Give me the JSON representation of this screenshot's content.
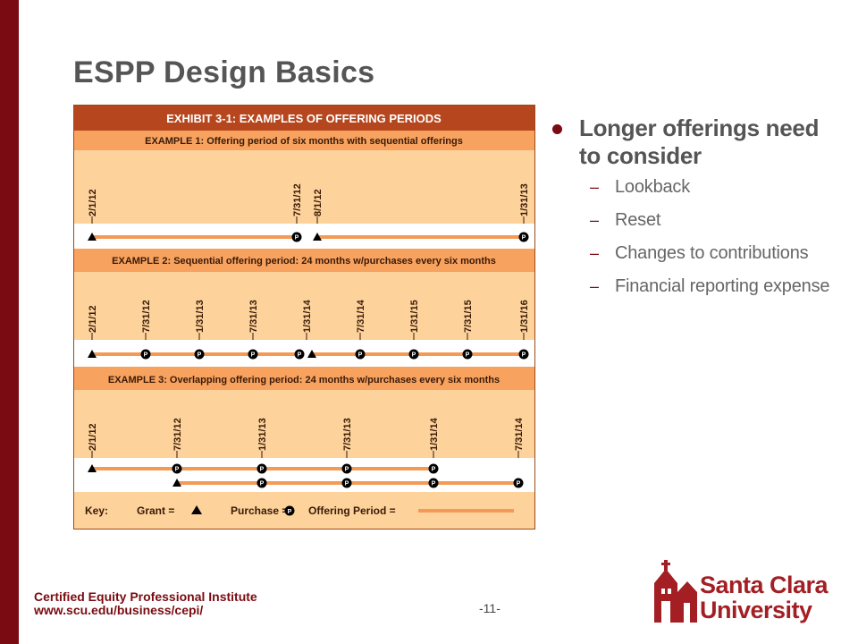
{
  "slide": {
    "title": "ESPP Design Basics",
    "footer_org": "Certified Equity Professional Institute",
    "footer_url": "www.scu.edu/business/cepi/",
    "page_number": "-11-"
  },
  "bullets": {
    "main": "Longer offerings need to consider",
    "sub": [
      "Lookback",
      "Reset",
      "Changes to contributions",
      "Financial reporting expense"
    ]
  },
  "logo": {
    "line1": "Santa Clara",
    "line2": "University"
  },
  "exhibit": {
    "title": "EXHIBIT 3-1: EXAMPLES OF OFFERING PERIODS",
    "examples": [
      {
        "heading": "EXAMPLE 1: Offering period of six months with sequential offerings",
        "dates": [
          "2/1/12",
          "7/31/12",
          "8/1/12",
          "1/31/13"
        ]
      },
      {
        "heading": "EXAMPLE 2: Sequential offering period: 24 months w/purchases every six months",
        "dates": [
          "2/1/12",
          "7/31/12",
          "1/31/13",
          "7/31/13",
          "1/31/14",
          "7/31/14",
          "1/31/15",
          "7/31/15",
          "1/31/16"
        ]
      },
      {
        "heading": "EXAMPLE 3: Overlapping offering period: 24 months w/purchases every six months",
        "dates": [
          "2/1/12",
          "7/31/12",
          "1/31/13",
          "7/31/13",
          "1/31/14",
          "7/31/14"
        ]
      }
    ],
    "key": {
      "label": "Key:",
      "grant": "Grant =",
      "purchase": "Purchase =",
      "offering_period": "Offering Period ="
    },
    "purchase_symbol": "P",
    "colors": {
      "dark_orange": "#b5461d",
      "orange": "#f7a25e",
      "light_orange": "#fdd39b",
      "line": "#f59a55"
    }
  }
}
